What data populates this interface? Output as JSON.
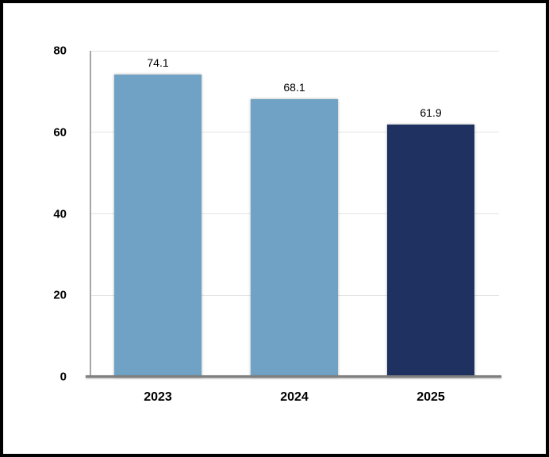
{
  "chart_data": {
    "type": "bar",
    "categories": [
      "2023",
      "2024",
      "2025"
    ],
    "values": [
      74.1,
      68.1,
      61.9
    ],
    "value_labels": [
      "74.1",
      "68.1",
      "61.9"
    ],
    "series": [
      {
        "name": "",
        "values": [
          74.1,
          68.1,
          61.9
        ]
      }
    ],
    "bar_colors": [
      "#6FA2C4",
      "#6FA2C4",
      "#1F3160"
    ],
    "ylim": [
      0,
      80
    ],
    "yticks": [
      0,
      20,
      40,
      60,
      80
    ],
    "grid": true,
    "legend_position": "none"
  },
  "style": {
    "frame_border_color": "#000000",
    "background_color": "#FFFFFF",
    "gridline_color": "#E4E4E4",
    "y_axis_line_color": "#A6A6A6",
    "baseline_color": "#7F7F7F",
    "label_color": "#000000",
    "bar_light_blue": "#6FA2C4",
    "bar_dark_navy": "#1F3160"
  }
}
